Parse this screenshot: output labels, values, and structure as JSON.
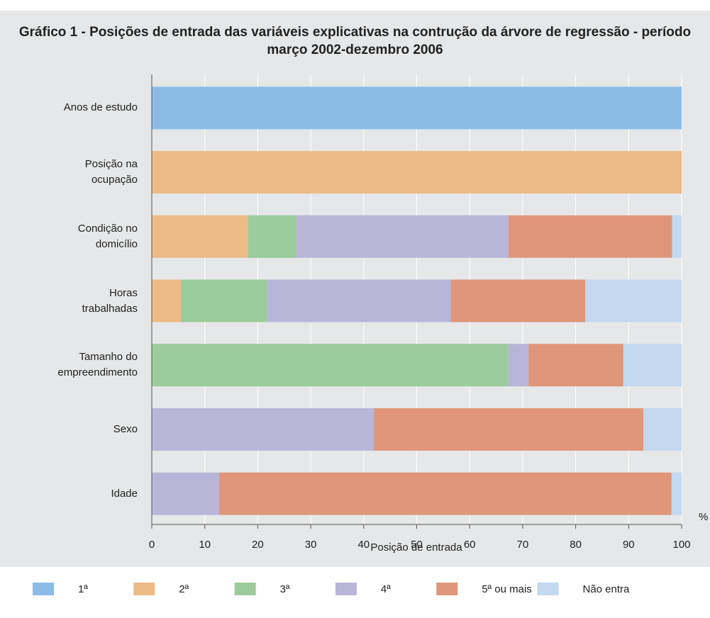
{
  "chart_data": {
    "type": "stacked_barh",
    "title": "Gráfico 1 - Posições de entrada das variáveis explicativas na contrução da árvore de regressão - período março 2002-dezembro 2006",
    "xlabel": "Posição de entrada",
    "unit": "%",
    "categories": [
      "Anos de estudo",
      "Posição na\nocupação",
      "Condição no\ndomicílio",
      "Horas\ntrabalhadas",
      "Tamanho do\nempreendimento",
      "Sexo",
      "Idade"
    ],
    "series": [
      {
        "name": "1ª",
        "color": "#8cbce6",
        "values": [
          100,
          0,
          0,
          0,
          0,
          0,
          0
        ]
      },
      {
        "name": "2ª",
        "color": "#edbb87",
        "values": [
          0,
          100,
          18.2,
          5.5,
          0,
          0,
          0
        ]
      },
      {
        "name": "3ª",
        "color": "#9ccb9d",
        "values": [
          0,
          0,
          9.1,
          16.3,
          67.3,
          0,
          0
        ]
      },
      {
        "name": "4ª",
        "color": "#b9b5d9",
        "values": [
          0,
          0,
          40.0,
          34.6,
          3.8,
          41.9,
          12.7
        ]
      },
      {
        "name": "5ª ou mais",
        "color": "#e0967a",
        "values": [
          0,
          0,
          30.9,
          25.4,
          17.9,
          50.9,
          85.4
        ]
      },
      {
        "name": "Não entra",
        "color": "#c2d9f0",
        "values": [
          0,
          0,
          1.8,
          18.2,
          11.0,
          7.2,
          1.9
        ]
      }
    ],
    "xlim": [
      0,
      100
    ],
    "xticks": [
      0,
      10,
      20,
      30,
      40,
      50,
      60,
      70,
      80,
      90,
      100
    ],
    "grid": true
  }
}
